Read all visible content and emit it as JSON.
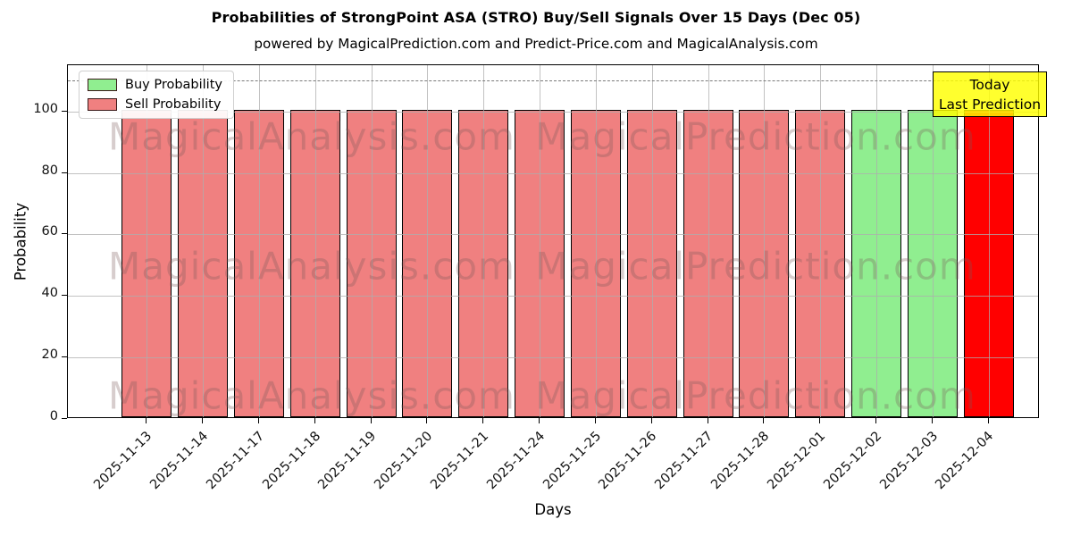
{
  "title": "Probabilities of StrongPoint ASA (STRO) Buy/Sell Signals Over 15 Days (Dec 05)",
  "subtitle": "powered by MagicalPrediction.com and Predict-Price.com and MagicalAnalysis.com",
  "colors": {
    "buy": "#90ee90",
    "sell": "#f08080",
    "today": "#ff0000",
    "bar_edge": "#000000",
    "grid": "#adadad",
    "dashed_line": "#7a7a7a",
    "annotation_bg": "#ffff00",
    "annotation_border": "#000000",
    "legend_border": "#cfcfcf"
  },
  "legend": [
    {
      "label": "Buy Probability",
      "color": "#90ee90"
    },
    {
      "label": "Sell Probability",
      "color": "#f08080"
    }
  ],
  "annotation": {
    "line1": "Today",
    "line2": "Last Prediction"
  },
  "watermarks": {
    "left_text": "MagicalAnalysis.com",
    "right_text": "MagicalPrediction.com"
  },
  "chart_data": {
    "type": "bar",
    "title": "Probabilities of StrongPoint ASA (STRO) Buy/Sell Signals Over 15 Days (Dec 05)",
    "xlabel": "Days",
    "ylabel": "Probability",
    "ylim": [
      0,
      115
    ],
    "yticks": [
      0,
      20,
      40,
      60,
      80,
      100
    ],
    "dashed_line_y": 110,
    "grid": true,
    "legend_position": "upper left",
    "categories": [
      "2025-11-13",
      "2025-11-14",
      "2025-11-17",
      "2025-11-18",
      "2025-11-19",
      "2025-11-20",
      "2025-11-21",
      "2025-11-24",
      "2025-11-25",
      "2025-11-26",
      "2025-11-27",
      "2025-11-28",
      "2025-12-01",
      "2025-12-02",
      "2025-12-03",
      "2025-12-04"
    ],
    "bar_types": [
      "sell",
      "sell",
      "sell",
      "sell",
      "sell",
      "sell",
      "sell",
      "sell",
      "sell",
      "sell",
      "sell",
      "sell",
      "sell",
      "buy",
      "buy",
      "today"
    ],
    "series": [
      {
        "name": "Buy Probability",
        "values": [
          0,
          0,
          0,
          0,
          0,
          0,
          0,
          0,
          0,
          0,
          0,
          0,
          0,
          100,
          100,
          0
        ]
      },
      {
        "name": "Sell Probability",
        "values": [
          100,
          100,
          100,
          100,
          100,
          100,
          100,
          100,
          100,
          100,
          100,
          100,
          100,
          0,
          0,
          0
        ]
      },
      {
        "name": "Today Last Prediction",
        "values": [
          0,
          0,
          0,
          0,
          0,
          0,
          0,
          0,
          0,
          0,
          0,
          0,
          0,
          0,
          0,
          100
        ]
      }
    ]
  }
}
